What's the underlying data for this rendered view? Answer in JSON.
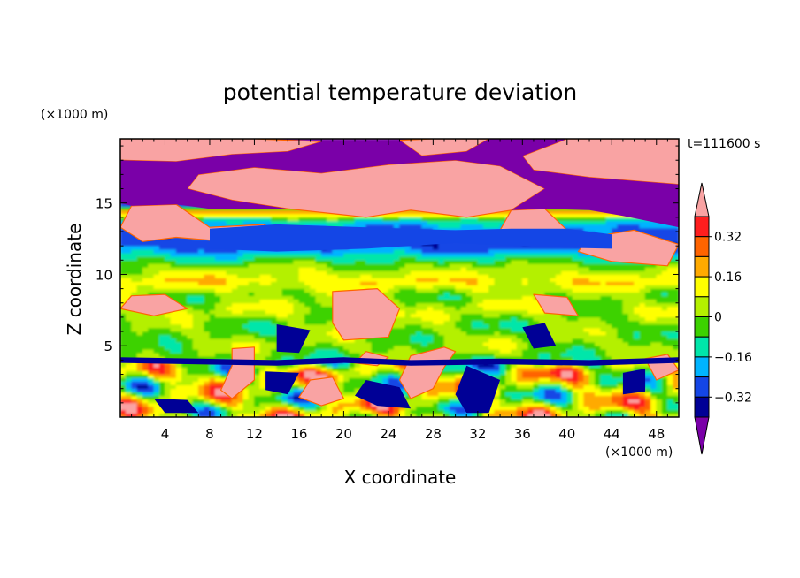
{
  "chart_data": {
    "type": "heatmap",
    "title": "potential temperature deviation",
    "time_label": "t=111600 s",
    "xlabel": "X coordinate",
    "ylabel": "Z coordinate",
    "x_unit": "(×1000 m)",
    "y_unit": "(×1000 m)",
    "xlim": [
      0,
      50
    ],
    "ylim": [
      0,
      19.5
    ],
    "x_ticks": [
      "4",
      "8",
      "12",
      "16",
      "20",
      "24",
      "28",
      "32",
      "36",
      "40",
      "44",
      "48"
    ],
    "y_ticks": [
      "5",
      "10",
      "15"
    ],
    "colorbar": {
      "levels": [
        -0.4,
        -0.32,
        -0.24,
        -0.16,
        -0.08,
        0,
        0.08,
        0.16,
        0.24,
        0.32,
        0.4
      ],
      "tick_labels": [
        "0.32",
        "0.16",
        "0",
        "−0.16",
        "−0.32"
      ],
      "colors": [
        "#7a00a8",
        "#000096",
        "#1446e6",
        "#00b4ff",
        "#00e6aa",
        "#3cd200",
        "#b4f000",
        "#ffff00",
        "#ffaa00",
        "#ff6400",
        "#ff1e1e",
        "#f9a3a3"
      ],
      "extend": "both"
    },
    "regions": [
      {
        "desc": "positive-extreme (pink) upper layer",
        "value": 0.45,
        "polys": [
          [
            [
              0,
              19.5
            ],
            [
              12,
              19.5
            ],
            [
              18,
              19.3
            ],
            [
              15,
              18.6
            ],
            [
              10,
              18.4
            ],
            [
              5,
              17.9
            ],
            [
              0,
              18
            ]
          ],
          [
            [
              25,
              19.4
            ],
            [
              28,
              19.5
            ],
            [
              33,
              19.5
            ],
            [
              31,
              18.6
            ],
            [
              27,
              18.3
            ]
          ],
          [
            [
              40,
              19.5
            ],
            [
              50,
              19.5
            ],
            [
              50,
              16.3
            ],
            [
              42,
              16.8
            ],
            [
              37,
              17.3
            ],
            [
              36,
              18.3
            ]
          ],
          [
            [
              7,
              17
            ],
            [
              12,
              17.5
            ],
            [
              18,
              17.1
            ],
            [
              24,
              17.7
            ],
            [
              30,
              18
            ],
            [
              34,
              17.6
            ],
            [
              38,
              16
            ],
            [
              35,
              14.5
            ],
            [
              31,
              14
            ],
            [
              26,
              14.5
            ],
            [
              22,
              14
            ],
            [
              15,
              14.6
            ],
            [
              10,
              15.2
            ],
            [
              6,
              16
            ]
          ],
          [
            [
              1,
              14.8
            ],
            [
              5,
              14.9
            ],
            [
              8,
              13.3
            ],
            [
              13,
              13.5
            ],
            [
              11,
              12.2
            ],
            [
              5,
              12.6
            ],
            [
              2,
              12.3
            ],
            [
              0,
              13.3
            ]
          ],
          [
            [
              35,
              14.5
            ],
            [
              38,
              14.6
            ],
            [
              40,
              13.1
            ],
            [
              37,
              12.6
            ],
            [
              34,
              13.1
            ]
          ],
          [
            [
              42,
              12.6
            ],
            [
              46,
              13.1
            ],
            [
              50,
              12.1
            ],
            [
              49,
              10.6
            ],
            [
              44,
              10.9
            ],
            [
              41,
              11.6
            ]
          ],
          [
            [
              19,
              8.8
            ],
            [
              23,
              9
            ],
            [
              25,
              7.6
            ],
            [
              24,
              5.6
            ],
            [
              20,
              5.4
            ],
            [
              19,
              6.6
            ]
          ],
          [
            [
              1,
              8.5
            ],
            [
              4,
              8.6
            ],
            [
              6,
              7.6
            ],
            [
              3,
              7.1
            ],
            [
              0,
              7.6
            ]
          ],
          [
            [
              37,
              8.6
            ],
            [
              40,
              8.4
            ],
            [
              41,
              7.1
            ],
            [
              38,
              7.3
            ]
          ],
          [
            [
              22,
              4.6
            ],
            [
              24,
              4.2
            ],
            [
              23,
              3.6
            ],
            [
              21,
              3.8
            ]
          ],
          [
            [
              26,
              4.3
            ],
            [
              29,
              4.9
            ],
            [
              30,
              4.6
            ],
            [
              29,
              3.5
            ],
            [
              28,
              2
            ],
            [
              26,
              1.3
            ],
            [
              25,
              2.6
            ]
          ],
          [
            [
              10,
              4.8
            ],
            [
              12,
              4.9
            ],
            [
              12,
              2.6
            ],
            [
              10,
              1.3
            ],
            [
              9,
              1.9
            ],
            [
              10,
              3.6
            ]
          ],
          [
            [
              17,
              2.6
            ],
            [
              19,
              2.8
            ],
            [
              20,
              1.3
            ],
            [
              18,
              0.8
            ],
            [
              16,
              1.4
            ]
          ],
          [
            [
              47,
              4.1
            ],
            [
              49,
              4.4
            ],
            [
              50,
              3.3
            ],
            [
              48,
              2.6
            ]
          ]
        ]
      },
      {
        "desc": "negative-extreme (purple) stratosphere band",
        "value": -0.45,
        "polys": [
          [
            [
              0,
              18
            ],
            [
              5,
              17.9
            ],
            [
              10,
              18.4
            ],
            [
              15,
              18.6
            ],
            [
              18,
              19.3
            ],
            [
              25,
              19.4
            ],
            [
              27,
              18.3
            ],
            [
              31,
              18.6
            ],
            [
              33,
              19.5
            ],
            [
              40,
              19.5
            ],
            [
              36,
              18.3
            ],
            [
              37,
              17.3
            ],
            [
              42,
              16.8
            ],
            [
              50,
              16.3
            ],
            [
              50,
              13.3
            ],
            [
              45,
              14.1
            ],
            [
              42,
              14.5
            ],
            [
              38,
              14.6
            ],
            [
              35,
              14.5
            ],
            [
              38,
              16
            ],
            [
              34,
              17.6
            ],
            [
              30,
              18
            ],
            [
              24,
              17.7
            ],
            [
              18,
              17.1
            ],
            [
              12,
              17.5
            ],
            [
              7,
              17
            ],
            [
              6,
              16
            ],
            [
              10,
              15.2
            ],
            [
              15,
              14.6
            ],
            [
              8,
              14.6
            ],
            [
              5,
              14.9
            ],
            [
              1,
              14.8
            ],
            [
              0,
              15
            ]
          ]
        ]
      },
      {
        "desc": "cold band near 13 km",
        "value": -0.32,
        "polys": [
          [
            [
              8,
              13.2
            ],
            [
              14,
              13.5
            ],
            [
              22,
              13.3
            ],
            [
              30,
              13.1
            ],
            [
              35,
              13.2
            ],
            [
              40,
              13.2
            ],
            [
              44,
              12.8
            ],
            [
              44,
              11.8
            ],
            [
              38,
              11.9
            ],
            [
              30,
              12.2
            ],
            [
              22,
              11.8
            ],
            [
              14,
              11.6
            ],
            [
              8,
              11.8
            ]
          ]
        ]
      },
      {
        "desc": "lower-level cold (purple/blue) features",
        "value": -0.4,
        "polys": [
          [
            [
              0,
              4.2
            ],
            [
              7,
              4.1
            ],
            [
              14,
              4
            ],
            [
              20,
              4.2
            ],
            [
              26,
              4
            ],
            [
              34,
              4.1
            ],
            [
              42,
              4
            ],
            [
              50,
              4.2
            ],
            [
              50,
              3.8
            ],
            [
              42,
              3.6
            ],
            [
              34,
              3.7
            ],
            [
              26,
              3.6
            ],
            [
              20,
              3.8
            ],
            [
              14,
              3.6
            ],
            [
              7,
              3.7
            ],
            [
              0,
              3.8
            ]
          ],
          [
            [
              22,
              2.6
            ],
            [
              25,
              2.1
            ],
            [
              26,
              0.6
            ],
            [
              23,
              0.8
            ],
            [
              21,
              1.5
            ]
          ],
          [
            [
              31,
              3.6
            ],
            [
              34,
              2.6
            ],
            [
              33,
              0.3
            ],
            [
              31,
              0.3
            ],
            [
              30,
              1.6
            ]
          ],
          [
            [
              3,
              1.3
            ],
            [
              6,
              1.2
            ],
            [
              7,
              0.3
            ],
            [
              4,
              0.3
            ]
          ],
          [
            [
              13,
              3.2
            ],
            [
              16,
              3.1
            ],
            [
              15,
              1.6
            ],
            [
              13,
              1.9
            ]
          ],
          [
            [
              45,
              3.1
            ],
            [
              47,
              3.4
            ],
            [
              47,
              1.8
            ],
            [
              45,
              1.6
            ]
          ],
          [
            [
              14,
              6.5
            ],
            [
              17,
              6.1
            ],
            [
              16,
              4.5
            ],
            [
              14,
              4.6
            ]
          ],
          [
            [
              36,
              6.3
            ],
            [
              38,
              6.6
            ],
            [
              39,
              5
            ],
            [
              37,
              4.8
            ]
          ]
        ]
      }
    ]
  }
}
